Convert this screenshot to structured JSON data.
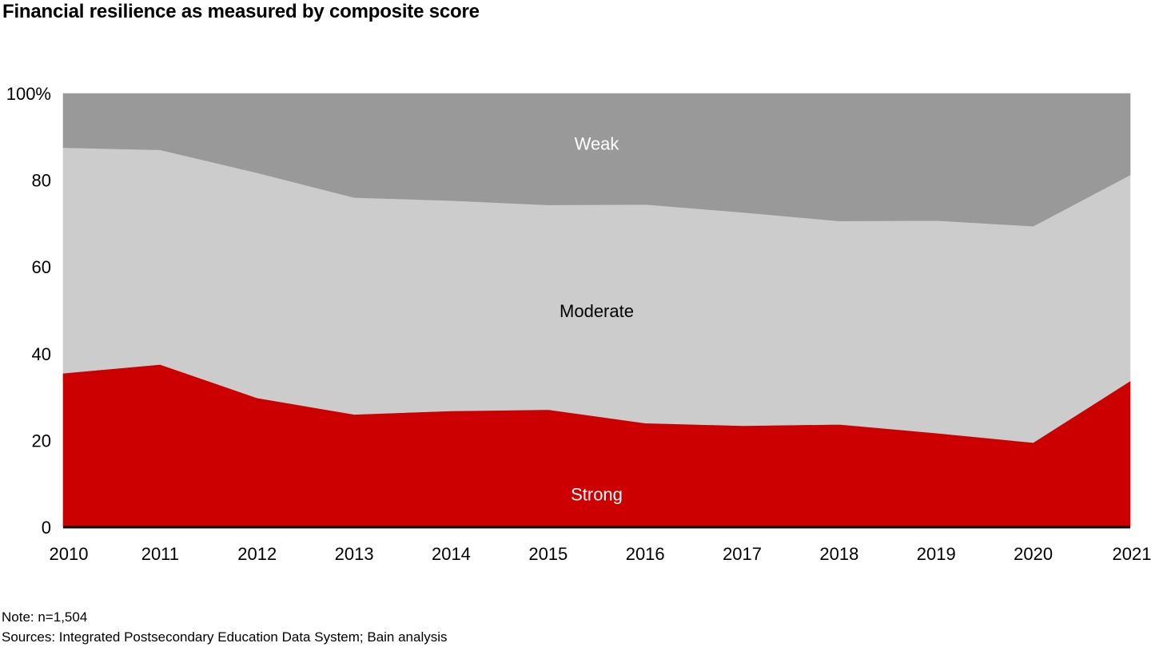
{
  "title": "Financial resilience as measured by composite score",
  "note": "Note: n=1,504",
  "sources": "Sources: Integrated Postsecondary Education Data System; Bain analysis",
  "chart_data": {
    "type": "area",
    "stacked": true,
    "x": [
      "2010",
      "2011",
      "2012",
      "2013",
      "2014",
      "2015",
      "2016",
      "2017",
      "2018",
      "2019",
      "2020",
      "2021"
    ],
    "series": [
      {
        "name": "Strong",
        "values": [
          35.5,
          37.5,
          29.8,
          26.0,
          26.8,
          27.1,
          24.0,
          23.4,
          23.7,
          21.7,
          19.5,
          33.7
        ],
        "color": "#cc0000",
        "label_color": "#ffffff"
      },
      {
        "name": "Moderate",
        "values": [
          52.0,
          49.5,
          51.9,
          50.0,
          48.5,
          47.2,
          50.4,
          49.2,
          46.9,
          49.0,
          49.9,
          47.5
        ],
        "color": "#cccccc",
        "label_color": "#000000"
      },
      {
        "name": "Weak",
        "values": [
          12.5,
          13.0,
          18.3,
          24.0,
          24.7,
          25.7,
          25.6,
          27.4,
          29.4,
          29.3,
          30.6,
          18.8
        ],
        "color": "#999999",
        "label_color": "#ffffff"
      }
    ],
    "y_ticks": [
      "0",
      "20",
      "40",
      "60",
      "80",
      "100%"
    ],
    "ylim": [
      0,
      100
    ],
    "legend": "inline labels",
    "grid": false
  }
}
